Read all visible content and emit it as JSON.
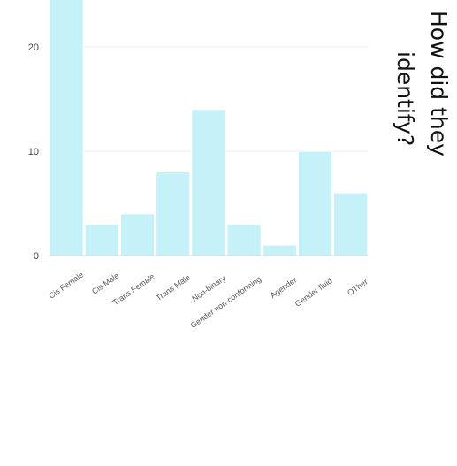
{
  "chart_data": {
    "type": "bar",
    "title_lines": [
      "How did they",
      "identify?"
    ],
    "categories": [
      "Cis Female",
      "Cis Male",
      "Trans Female",
      "Trans Male",
      "Non-binary",
      "Gender non-conforming",
      "Agender",
      "Gender fluid",
      "OTher"
    ],
    "values": [
      25,
      3,
      4,
      8,
      14,
      3,
      1,
      10,
      6
    ],
    "y_ticks": [
      0,
      10,
      20
    ],
    "ylim": [
      0,
      25
    ],
    "grid": true,
    "colors": {
      "bar": "#c5f2f8",
      "bar_stroke": "#ffffff",
      "grid": "#ececec",
      "axis": "#dddddd"
    }
  }
}
